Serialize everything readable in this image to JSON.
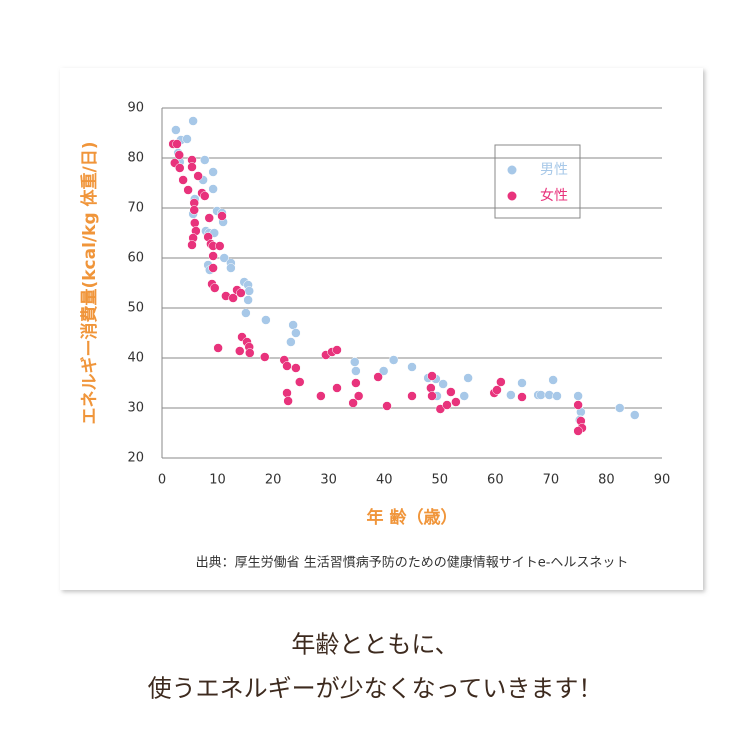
{
  "chart_data": {
    "type": "scatter",
    "ylabel": "エネルギー消費量(kcal/kg 体重/日)",
    "xlabel": "年 齢（歳）",
    "source": "出典：厚生労働省 生活習慣病予防のための健康情報サイトe-ヘルスネット",
    "xlim": [
      0,
      90
    ],
    "xticks": [
      0,
      10,
      20,
      30,
      40,
      50,
      60,
      70,
      80,
      90
    ],
    "ylim": [
      20,
      90
    ],
    "yticks": [
      20,
      30,
      40,
      50,
      60,
      70,
      80,
      90
    ],
    "grid": true,
    "legend": "upper right",
    "series": [
      {
        "name": "男性",
        "color": "#a7c8e8",
        "x": [
          2.5,
          5.6,
          3.4,
          4.5,
          2.9,
          3.2,
          7.7,
          9.2,
          7.4,
          9.2,
          5.9,
          5.6,
          9.9,
          10.8,
          11,
          7.9,
          8.5,
          9.4,
          11.2,
          12.4,
          12.4,
          8.3,
          8.6,
          14.8,
          15.5,
          15.7,
          15.5,
          15.1,
          18.7,
          23.6,
          24.1,
          23.2,
          34.7,
          34.9,
          39.9,
          41.7,
          45,
          47.9,
          49.3,
          50.6,
          49.5,
          55.1,
          54.4,
          64.8,
          62.8,
          67.7,
          68.2,
          69.7,
          70.4,
          71.1,
          74.9,
          75.4,
          75.2,
          82.4,
          85.1
        ],
        "values": [
          85.6,
          87.4,
          83.6,
          83.8,
          81,
          79.2,
          79.6,
          77.2,
          75.6,
          73.8,
          71.8,
          68.8,
          69.4,
          69,
          67.2,
          65.4,
          65,
          65,
          60,
          59,
          58,
          58.6,
          57.6,
          55.2,
          54.6,
          53.4,
          51.6,
          49,
          47.6,
          46.6,
          45,
          43.2,
          39.2,
          37.4,
          37.4,
          39.6,
          38.2,
          36,
          35.8,
          34.8,
          32.4,
          36,
          32.4,
          35,
          32.6,
          32.6,
          32.6,
          32.6,
          35.6,
          32.4,
          32.4,
          29.2,
          27.6,
          30,
          28.6
        ]
      },
      {
        "name": "女性",
        "color": "#e8337c",
        "x": [
          2,
          2.7,
          2.3,
          3.1,
          3.2,
          3.8,
          4.7,
          5.4,
          5.4,
          6.5,
          7.2,
          7.7,
          5.8,
          5.8,
          5.9,
          6.1,
          5.6,
          5.4,
          8.5,
          10.8,
          8.3,
          8.8,
          9.2,
          10.4,
          9.2,
          9.2,
          9,
          9.5,
          11.5,
          12.8,
          13.5,
          14.2,
          14.4,
          15.3,
          15.7,
          14,
          15.8,
          10.1,
          18.5,
          22,
          22.5,
          24.1,
          24.8,
          22.5,
          22.7,
          28.6,
          29.5,
          30.6,
          31.5,
          31.5,
          34.9,
          35.4,
          34.4,
          38.9,
          40.5,
          45,
          48.6,
          48.4,
          48.6,
          50.1,
          51.3,
          52,
          52.9,
          59.8,
          60.3,
          61,
          64.8,
          74.9,
          75.4,
          75.6,
          74.9
        ],
        "values": [
          82.8,
          82.8,
          79,
          80.6,
          78,
          75.6,
          73.6,
          79.6,
          78.2,
          76.4,
          73,
          72.4,
          71,
          69.6,
          67,
          65.4,
          64,
          62.6,
          68,
          68.4,
          64.2,
          62.8,
          62.4,
          62.4,
          60.4,
          58,
          54.8,
          54,
          52.4,
          52,
          53.6,
          53,
          44.2,
          43.2,
          42.2,
          41.4,
          41,
          42,
          40.2,
          39.6,
          38.4,
          38,
          35.2,
          33,
          31.4,
          32.4,
          40.6,
          41.2,
          41.6,
          34,
          35,
          32.4,
          31,
          36.2,
          30.4,
          32.4,
          36.4,
          34,
          32.4,
          29.8,
          30.6,
          33.2,
          31.2,
          33,
          33.6,
          35.2,
          32.2,
          30.6,
          27.4,
          26,
          25.4
        ]
      }
    ]
  },
  "caption": [
    "年齢とともに、",
    "使うエネルギーが少なくなっていきます！"
  ]
}
